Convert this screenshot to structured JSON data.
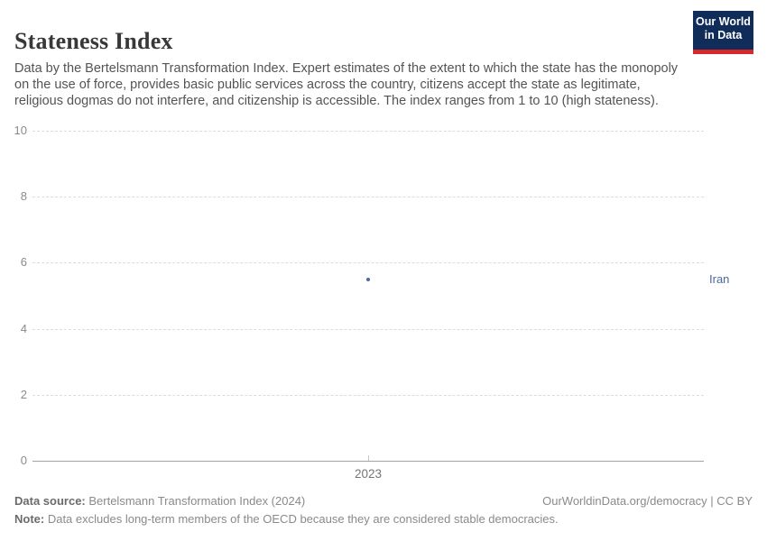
{
  "header": {
    "title": "Stateness Index",
    "subtitle": "Data by the Bertelsmann Transformation Index. Expert estimates of the extent to which the state has the monopoly on the use of force, provides basic public services across the country, citizens accept the state as legitimate, religious dogmas do not interfere, and citizenship is accessible. The index ranges from 1 to 10 (high stateness).",
    "logo": {
      "line1": "Our World",
      "line2": "in Data",
      "bg_color": "#102d5a",
      "accent_color": "#d7282d"
    }
  },
  "chart_data": {
    "type": "scatter",
    "title": "Stateness Index",
    "xlabel": "",
    "ylabel": "",
    "x_ticks": [
      "2023"
    ],
    "y_ticks": [
      0,
      2,
      4,
      6,
      8,
      10
    ],
    "ylim": [
      0,
      10
    ],
    "grid": "horizontal-dashed",
    "legend_position": "right-entity-label",
    "series": [
      {
        "name": "Iran",
        "x": [
          2023
        ],
        "values": [
          5.5
        ],
        "color": "#4c6a9e"
      }
    ]
  },
  "footer": {
    "source_label": "Data source:",
    "source_text": " Bertelsmann Transformation Index (2024)",
    "attribution": "OurWorldinData.org/democracy | CC BY",
    "note_label": "Note:",
    "note_text": " Data excludes long-term members of the OECD because they are considered stable democracies."
  }
}
